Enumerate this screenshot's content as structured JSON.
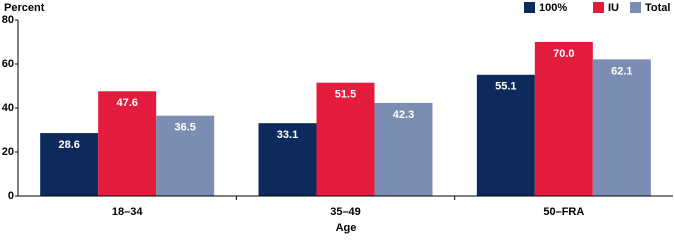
{
  "chart_data": {
    "type": "bar",
    "title": "Percent",
    "x_label": "Age",
    "categories": [
      "18–34",
      "35–49",
      "50–FRA"
    ],
    "series": [
      {
        "name": "100%",
        "color": "#0e2a5c",
        "values": [
          28.6,
          33.1,
          55.1
        ],
        "value_labels": [
          "28.6",
          "33.1",
          "55.1"
        ]
      },
      {
        "name": "IU",
        "color": "#e31c3d",
        "values": [
          47.6,
          51.5,
          70
        ],
        "value_labels": [
          "47.6",
          "51.5",
          "70.0"
        ]
      },
      {
        "name": "Total",
        "color": "#7b8db3",
        "values": [
          36.5,
          42.3,
          62.1
        ],
        "value_labels": [
          "36.5",
          "42.3",
          "62.1"
        ]
      }
    ],
    "ylim": [
      0,
      80
    ],
    "yticks": [
      0,
      20,
      40,
      60,
      80
    ],
    "grid": false,
    "legend": "top-right"
  }
}
